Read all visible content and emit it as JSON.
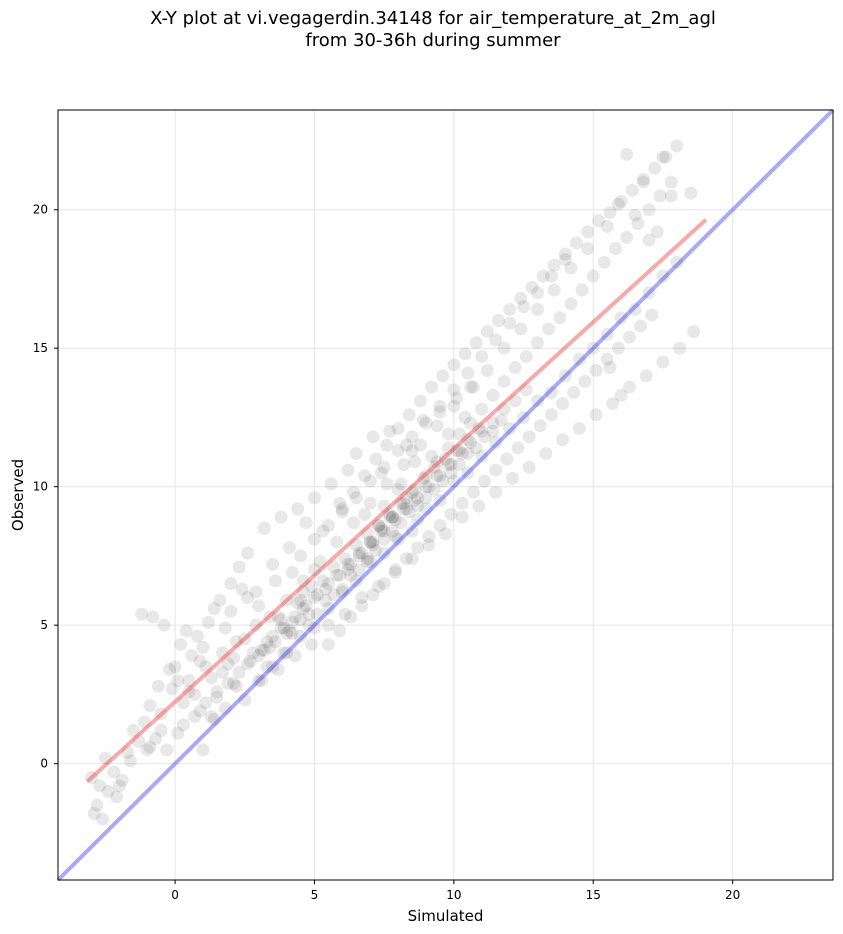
{
  "chart_data": {
    "type": "scatter",
    "title": "X-Y plot at vi.vegagerdin.34148 for air_temperature_at_2m_agl",
    "subtitle": "from 30-36h during summer",
    "xlabel": "Simulated",
    "ylabel": "Observed",
    "xlim": [
      -4.2,
      23.6
    ],
    "ylim": [
      -4.2,
      23.6
    ],
    "xticks": [
      0,
      5,
      10,
      15,
      20
    ],
    "yticks": [
      0,
      5,
      10,
      15,
      20
    ],
    "grid": true,
    "point_color": "#000000",
    "point_alpha": 0.09,
    "identity_line": {
      "x": [
        -4.2,
        23.6
      ],
      "y": [
        -4.2,
        23.6
      ],
      "color": "#3333ee"
    },
    "fit_line": {
      "x": [
        -3.1,
        19.0
      ],
      "y": [
        -0.6,
        19.6
      ],
      "color": "#ee3333"
    },
    "points": {
      "x": [
        -3.0,
        -2.8,
        -2.6,
        -2.4,
        -2.2,
        -2.9,
        -2.7,
        -2.5,
        -2.1,
        -1.9,
        -1.7,
        -1.5,
        -1.3,
        -1.1,
        -0.9,
        -0.7,
        -0.5,
        -0.3,
        -0.1,
        0.1,
        0.3,
        0.5,
        0.7,
        0.9,
        1.1,
        1.3,
        1.5,
        1.7,
        1.9,
        2.1,
        -1.2,
        -0.8,
        -0.4,
        -0.2,
        0.0,
        0.2,
        0.4,
        0.6,
        0.8,
        1.0,
        1.2,
        1.4,
        1.6,
        1.8,
        2.0,
        2.2,
        2.4,
        2.6,
        2.8,
        3.0,
        3.2,
        3.4,
        3.6,
        3.8,
        4.0,
        4.2,
        4.4,
        4.6,
        4.8,
        5.0,
        -0.9,
        -0.6,
        0.1,
        0.5,
        0.9,
        1.3,
        1.7,
        2.1,
        2.5,
        2.9,
        3.3,
        3.7,
        4.1,
        4.5,
        4.9,
        5.3,
        5.7,
        6.1,
        6.5,
        6.9,
        7.3,
        7.7,
        8.1,
        8.5,
        8.9,
        9.3,
        9.7,
        10.1,
        10.5,
        10.9,
        1.0,
        1.4,
        1.8,
        2.2,
        2.6,
        3.0,
        3.4,
        3.8,
        4.2,
        4.6,
        5.0,
        5.4,
        5.8,
        6.2,
        6.6,
        7.0,
        7.4,
        7.8,
        8.2,
        8.6,
        9.0,
        9.4,
        9.8,
        10.2,
        10.6,
        11.0,
        11.4,
        11.8,
        12.2,
        12.6,
        2.0,
        2.3,
        2.6,
        2.9,
        3.2,
        3.5,
        3.8,
        4.1,
        4.4,
        4.7,
        5.0,
        5.3,
        5.6,
        5.9,
        6.2,
        6.5,
        6.8,
        7.1,
        7.4,
        7.7,
        8.0,
        8.3,
        8.6,
        8.9,
        9.2,
        9.5,
        9.8,
        10.1,
        10.4,
        10.7,
        3.0,
        3.3,
        3.6,
        3.9,
        4.2,
        4.5,
        4.8,
        5.1,
        5.4,
        5.7,
        6.0,
        6.3,
        6.6,
        6.9,
        7.2,
        7.5,
        7.8,
        8.1,
        8.4,
        8.7,
        9.0,
        9.3,
        9.6,
        9.9,
        10.2,
        10.5,
        10.8,
        11.1,
        11.4,
        11.7,
        5.5,
        5.9,
        6.3,
        6.7,
        7.1,
        7.5,
        7.9,
        8.3,
        8.7,
        9.1,
        9.5,
        9.9,
        10.3,
        10.7,
        11.1,
        11.5,
        11.9,
        12.3,
        12.7,
        13.1,
        13.5,
        13.9,
        14.3,
        14.7,
        15.1,
        15.5,
        15.9,
        16.3,
        16.7,
        17.1,
        6.0,
        6.4,
        6.8,
        7.2,
        7.6,
        8.0,
        8.4,
        8.8,
        9.2,
        9.6,
        10.0,
        10.4,
        10.8,
        11.2,
        11.6,
        12.0,
        12.4,
        12.8,
        13.2,
        13.6,
        14.0,
        14.4,
        14.8,
        15.2,
        15.6,
        16.0,
        16.4,
        16.8,
        17.2,
        17.6,
        3.5,
        4.0,
        4.5,
        5.0,
        5.5,
        6.0,
        6.5,
        7.0,
        7.5,
        8.0,
        8.5,
        9.0,
        9.5,
        10.0,
        10.5,
        11.0,
        11.5,
        12.0,
        12.5,
        13.0,
        13.5,
        14.0,
        14.5,
        15.0,
        15.5,
        16.0,
        16.5,
        17.0,
        17.5,
        18.0,
        2.5,
        3.1,
        3.7,
        4.3,
        4.9,
        5.5,
        6.1,
        6.7,
        7.3,
        7.9,
        8.5,
        9.1,
        9.7,
        10.3,
        10.9,
        11.5,
        12.1,
        12.7,
        13.3,
        13.9,
        14.5,
        15.1,
        15.7,
        16.3,
        16.9,
        17.5,
        18.1,
        18.6,
        16.0,
        15.6,
        6.2,
        6.6,
        7.0,
        7.4,
        7.8,
        8.2,
        8.6,
        9.0,
        9.4,
        9.8,
        10.2,
        10.6,
        11.0,
        11.4,
        11.8,
        12.2,
        12.6,
        13.0,
        13.4,
        13.8,
        14.2,
        14.6,
        15.0,
        15.4,
        15.8,
        16.2,
        16.6,
        17.0,
        17.4,
        17.8,
        4.5,
        5.0,
        5.5,
        6.0,
        6.5,
        7.0,
        7.5,
        8.0,
        8.5,
        9.0,
        9.5,
        10.0,
        10.5,
        11.0,
        11.5,
        12.0,
        12.5,
        13.0,
        13.5,
        14.0,
        8.1,
        8.3,
        8.5,
        8.7,
        6.9,
        7.1,
        7.3,
        7.5,
        7.7,
        7.9,
        16.2,
        15.9,
        17.5,
        18.0,
        18.5,
        16.5,
        17.0,
        17.8,
        17.3,
        16.8,
        15.5,
        14.8,
        14.2,
        13.6,
        13.0,
        12.4,
        11.8,
        11.2,
        10.6,
        10.0,
        9.4,
        8.8,
        8.2,
        7.6,
        7.0,
        6.4,
        5.8,
        5.2,
        4.6,
        4.0,
        -2.0,
        -1.6,
        -1.0,
        -0.5,
        0.3,
        0.7,
        1.1,
        1.5,
        1.9,
        2.3,
        2.7,
        3.1,
        3.5,
        3.9,
        4.3,
        4.7,
        5.1,
        5.5,
        5.9,
        6.3,
        6.7,
        7.1,
        7.5,
        7.9,
        8.3,
        8.7,
        9.1,
        9.5,
        9.9,
        10.3
      ],
      "y": [
        -0.5,
        -1.5,
        -2.0,
        -1.0,
        -0.3,
        -1.8,
        -0.8,
        0.2,
        -1.2,
        -0.6,
        0.4,
        1.2,
        0.8,
        1.5,
        0.6,
        0.9,
        1.8,
        0.5,
        2.7,
        1.1,
        2.2,
        3.0,
        2.5,
        1.9,
        3.5,
        3.1,
        2.4,
        4.0,
        3.6,
        2.9,
        5.4,
        5.3,
        5.0,
        3.4,
        3.5,
        4.3,
        4.8,
        3.9,
        4.6,
        4.2,
        5.1,
        5.6,
        5.9,
        4.9,
        5.5,
        4.4,
        6.3,
        6.0,
        4.0,
        5.7,
        4.1,
        5.3,
        6.6,
        5.2,
        4.7,
        6.9,
        5.8,
        6.2,
        5.4,
        7.0,
        2.1,
        2.8,
        3.0,
        2.6,
        3.7,
        1.7,
        3.3,
        3.8,
        4.5,
        5.0,
        4.4,
        5.3,
        4.8,
        5.9,
        6.4,
        6.6,
        7.1,
        7.4,
        7.9,
        8.3,
        8.6,
        9.0,
        9.4,
        9.8,
        10.3,
        10.7,
        11.0,
        11.3,
        11.7,
        12.1,
        0.5,
        1.6,
        2.0,
        2.8,
        3.6,
        3.9,
        4.2,
        4.9,
        5.1,
        5.6,
        6.0,
        6.3,
        6.8,
        7.2,
        7.6,
        8.0,
        8.5,
        8.9,
        9.2,
        9.5,
        10.0,
        10.4,
        10.8,
        11.3,
        11.6,
        12.0,
        12.3,
        12.8,
        13.1,
        13.5,
        6.5,
        7.1,
        7.6,
        6.2,
        8.5,
        7.2,
        8.9,
        7.8,
        9.2,
        8.7,
        9.6,
        8.4,
        10.1,
        9.4,
        10.6,
        11.2,
        9.0,
        11.8,
        10.5,
        12.0,
        9.9,
        11.5,
        10.9,
        12.4,
        11.1,
        12.7,
        11.9,
        13.2,
        12.5,
        13.6,
        3.0,
        3.5,
        4.4,
        4.0,
        4.7,
        5.2,
        5.0,
        5.4,
        5.9,
        6.1,
        6.3,
        6.8,
        7.0,
        7.3,
        7.7,
        8.1,
        8.4,
        8.7,
        9.1,
        9.3,
        9.6,
        9.9,
        10.2,
        10.5,
        10.8,
        11.2,
        11.4,
        11.8,
        12.0,
        12.4,
        4.3,
        4.8,
        5.3,
        5.7,
        6.1,
        6.5,
        7.0,
        7.4,
        7.8,
        8.2,
        8.6,
        9.0,
        9.4,
        9.8,
        10.2,
        10.6,
        11.0,
        11.4,
        11.8,
        12.2,
        12.6,
        13.0,
        13.4,
        13.8,
        14.2,
        14.6,
        15.0,
        15.4,
        15.8,
        16.2,
        9.2,
        9.8,
        10.4,
        11.0,
        11.5,
        12.1,
        12.6,
        13.1,
        13.6,
        14.0,
        14.4,
        14.8,
        15.2,
        15.6,
        16.0,
        16.4,
        16.8,
        17.2,
        17.6,
        18.0,
        18.4,
        18.8,
        19.2,
        19.6,
        19.9,
        20.3,
        20.7,
        21.1,
        21.5,
        21.9,
        3.5,
        4.0,
        4.6,
        4.9,
        5.6,
        6.2,
        6.6,
        7.3,
        7.6,
        8.1,
        8.4,
        9.2,
        9.5,
        10.2,
        10.5,
        11.1,
        11.6,
        12.1,
        12.5,
        13.1,
        13.4,
        14.0,
        14.6,
        15.0,
        15.5,
        16.1,
        16.4,
        17.0,
        17.6,
        18.1,
        2.3,
        3.0,
        3.4,
        3.9,
        4.3,
        5.0,
        5.4,
        6.0,
        6.4,
        6.9,
        7.4,
        7.9,
        8.3,
        8.9,
        9.3,
        9.8,
        10.3,
        10.7,
        11.2,
        11.7,
        12.1,
        12.6,
        13.0,
        13.6,
        14.0,
        14.5,
        15.0,
        15.6,
        13.3,
        14.3,
        7.0,
        7.5,
        8.0,
        8.4,
        8.9,
        9.4,
        9.9,
        10.4,
        10.9,
        11.4,
        11.9,
        12.3,
        12.8,
        13.3,
        13.8,
        14.3,
        14.7,
        15.2,
        15.7,
        16.1,
        16.6,
        17.1,
        17.6,
        18.1,
        18.6,
        19.0,
        19.5,
        20.0,
        20.5,
        21.0,
        7.5,
        8.1,
        8.6,
        9.1,
        9.6,
        10.2,
        10.7,
        11.3,
        11.8,
        12.3,
        12.9,
        13.5,
        14.1,
        14.7,
        15.3,
        15.9,
        16.5,
        17.0,
        17.6,
        18.2,
        10.1,
        9.6,
        11.3,
        8.8,
        7.4,
        7.9,
        8.6,
        9.3,
        8.9,
        8.2,
        22.0,
        20.2,
        21.9,
        22.3,
        20.6,
        19.8,
        18.9,
        20.5,
        19.2,
        21.0,
        19.4,
        18.6,
        17.9,
        17.1,
        16.4,
        15.7,
        15.0,
        14.2,
        13.6,
        12.9,
        12.2,
        11.5,
        10.8,
        10.1,
        9.4,
        8.7,
        8.0,
        7.3,
        6.6,
        5.9,
        -0.8,
        0.1,
        0.5,
        1.2,
        1.4,
        1.7,
        2.2,
        2.6,
        2.9,
        3.3,
        3.7,
        4.1,
        4.6,
        4.9,
        5.3,
        5.7,
        6.1,
        6.5,
        6.8,
        7.2,
        7.6,
        8.0,
        8.4,
        8.8,
        9.2,
        9.6,
        10.0,
        10.4,
        10.8,
        11.2
      ]
    }
  }
}
